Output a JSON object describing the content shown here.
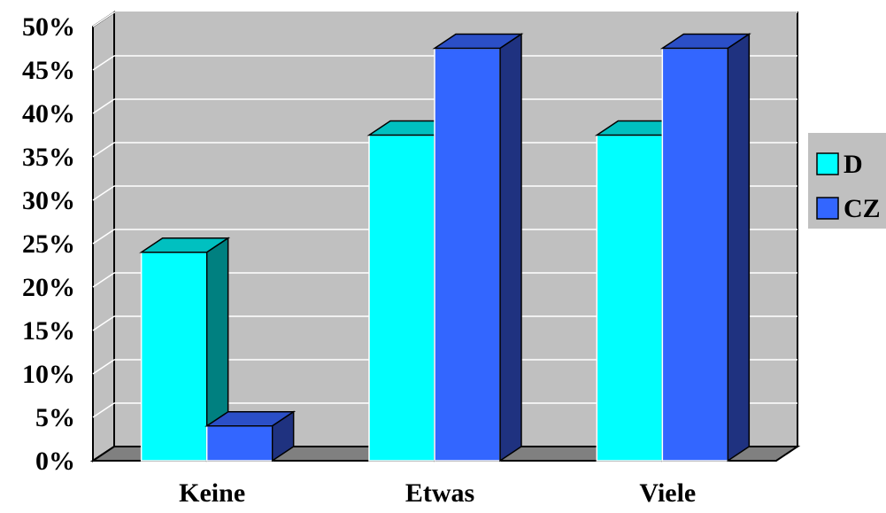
{
  "chart_data": {
    "type": "bar",
    "categories": [
      "Keine",
      "Etwas",
      "Viele"
    ],
    "series": [
      {
        "name": "D",
        "values": [
          24,
          37.5,
          37.5
        ],
        "front": "#00FFFF",
        "top": "#00C0C0",
        "side": "#008080"
      },
      {
        "name": "CZ",
        "values": [
          4,
          47.5,
          47.5
        ],
        "front": "#3366FF",
        "top": "#2B4FC7",
        "side": "#1F3280"
      }
    ],
    "ylim": [
      0,
      50
    ],
    "yticks": [
      "0%",
      "5%",
      "10%",
      "15%",
      "20%",
      "25%",
      "30%",
      "35%",
      "40%",
      "45%",
      "50%"
    ],
    "grid": true,
    "legend": "right",
    "wall_color": "#C0C0C0",
    "floor_color": "#808080"
  }
}
